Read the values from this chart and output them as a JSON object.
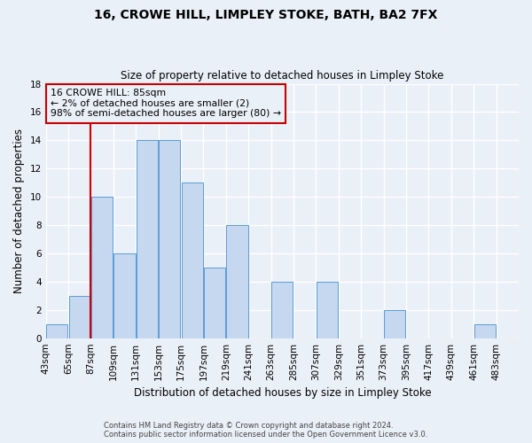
{
  "title": "16, CROWE HILL, LIMPLEY STOKE, BATH, BA2 7FX",
  "subtitle": "Size of property relative to detached houses in Limpley Stoke",
  "xlabel": "Distribution of detached houses by size in Limpley Stoke",
  "ylabel": "Number of detached properties",
  "bar_values": [
    1,
    3,
    10,
    6,
    14,
    14,
    11,
    5,
    8,
    0,
    4,
    0,
    4,
    0,
    0,
    2,
    0,
    0,
    0,
    1
  ],
  "bin_edges": [
    43,
    65,
    87,
    109,
    131,
    153,
    175,
    197,
    219,
    241,
    263,
    285,
    307,
    329,
    351,
    373,
    395,
    417,
    439,
    461,
    483
  ],
  "xlabels": [
    "43sqm",
    "65sqm",
    "87sqm",
    "109sqm",
    "131sqm",
    "153sqm",
    "175sqm",
    "197sqm",
    "219sqm",
    "241sqm",
    "263sqm",
    "285sqm",
    "307sqm",
    "329sqm",
    "351sqm",
    "373sqm",
    "395sqm",
    "417sqm",
    "439sqm",
    "461sqm",
    "483sqm"
  ],
  "bar_color": "#c5d8f0",
  "bar_edge_color": "#5b9bd5",
  "property_line_x": 87,
  "property_line_color": "#cc0000",
  "ylim": [
    0,
    18
  ],
  "yticks": [
    0,
    2,
    4,
    6,
    8,
    10,
    12,
    14,
    16,
    18
  ],
  "annotation_title": "16 CROWE HILL: 85sqm",
  "annotation_line1": "← 2% of detached houses are smaller (2)",
  "annotation_line2": "98% of semi-detached houses are larger (80) →",
  "annotation_box_color": "#cc0000",
  "footer_line1": "Contains HM Land Registry data © Crown copyright and database right 2024.",
  "footer_line2": "Contains public sector information licensed under the Open Government Licence v3.0.",
  "background_color": "#eaf0f8",
  "grid_color": "#ffffff",
  "figsize": [
    6.0,
    5.0
  ],
  "dpi": 100
}
